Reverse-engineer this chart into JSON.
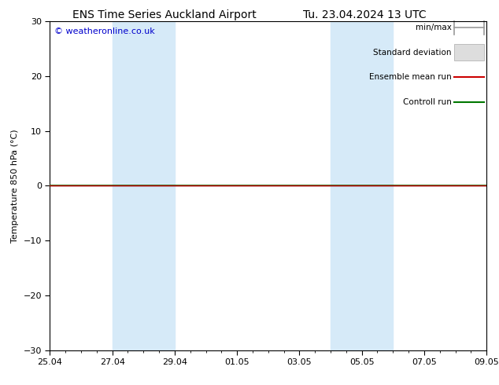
{
  "title_left": "ENS Time Series Auckland Airport",
  "title_right": "Tu. 23.04.2024 13 UTC",
  "ylabel": "Temperature 850 hPa (°C)",
  "watermark": "© weatheronline.co.uk",
  "ylim": [
    -30,
    30
  ],
  "yticks": [
    -30,
    -20,
    -10,
    0,
    10,
    20,
    30
  ],
  "xtick_labels": [
    "25.04",
    "27.04",
    "29.04",
    "01.05",
    "03.05",
    "05.05",
    "07.05",
    "09.05"
  ],
  "xtick_positions": [
    0,
    2,
    4,
    6,
    8,
    10,
    12,
    14
  ],
  "n_minor_xticks": 4,
  "shaded_bands": [
    {
      "x_start": 2,
      "x_end": 4
    },
    {
      "x_start": 9,
      "x_end": 11
    }
  ],
  "shaded_color": "#d6eaf8",
  "zero_line_color": "#000000",
  "green_line_y": 0,
  "green_line_color": "#007700",
  "red_line_y": 0,
  "red_line_color": "#cc0000",
  "background_color": "#ffffff",
  "plot_bg_color": "#ffffff",
  "legend_items": [
    {
      "label": "min/max",
      "color": "#999999",
      "style": "minmax"
    },
    {
      "label": "Standard deviation",
      "color": "#cccccc",
      "style": "rect"
    },
    {
      "label": "Ensemble mean run",
      "color": "#cc0000",
      "style": "line"
    },
    {
      "label": "Controll run",
      "color": "#007700",
      "style": "line"
    }
  ],
  "title_fontsize": 10,
  "axis_label_fontsize": 8,
  "tick_fontsize": 8,
  "watermark_fontsize": 8,
  "legend_fontsize": 7.5
}
